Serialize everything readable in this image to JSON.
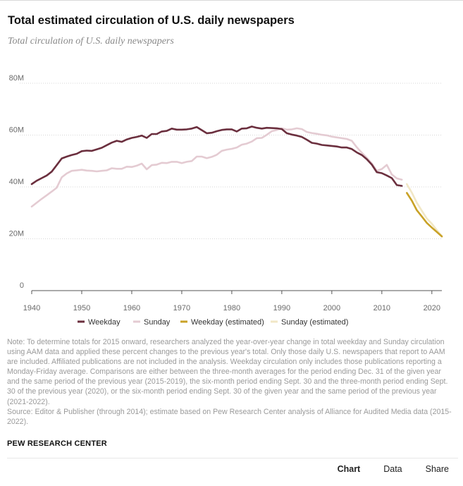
{
  "title": "Total estimated circulation of U.S. daily newspapers",
  "subtitle": "Total circulation of U.S. daily newspapers",
  "note": "Note: To determine totals for 2015 onward, researchers analyzed the year-over-year change in total weekday and Sunday circulation using AAM data and applied these percent changes to the previous year's total. Only those daily U.S. newspapers that report to AAM are included. Affiliated publications are not included in the analysis. Weekday circulation only includes those publications reporting a Monday-Friday average. Comparisons are either between the three-month averages for the period ending Dec. 31 of the given year and the same period of the previous year (2015-2019), the six-month period ending Sept. 30 and the three-month period ending Sept. 30 of the previous year (2020), or the six-month period ending Sept. 30 of the given year and the same period of the previous year (2021-2022).",
  "source": "Source: Editor & Publisher (through 2014); estimate based on Pew Research Center analysis of Alliance for Audited Media data (2015-2022).",
  "brand": "PEW RESEARCH CENTER",
  "tabs": {
    "chart": "Chart",
    "data": "Data",
    "share": "Share"
  },
  "colors": {
    "weekday": "#6b2f3e",
    "sunday": "#e4cbd2",
    "weekday_est": "#c9a227",
    "sunday_est": "#f1e7c6",
    "grid": "#d6d6d6",
    "axis": "#555555",
    "tick": "#6a6a6a"
  },
  "chart_data": {
    "type": "line",
    "x_ticks": [
      1940,
      1950,
      1960,
      1970,
      1980,
      1990,
      2000,
      2010,
      2020
    ],
    "y_ticks": [
      0,
      20,
      40,
      60,
      80
    ],
    "y_tick_labels": [
      "0",
      "20M",
      "40M",
      "60M",
      "80M"
    ],
    "xlim": [
      1940,
      2022
    ],
    "ylim": [
      0,
      80
    ],
    "grid": true,
    "legend_placement": "bottom",
    "series": [
      {
        "name": "Weekday",
        "x": [
          1940,
          1941,
          1942,
          1943,
          1944,
          1945,
          1946,
          1947,
          1948,
          1949,
          1950,
          1951,
          1952,
          1953,
          1954,
          1955,
          1956,
          1957,
          1958,
          1959,
          1960,
          1961,
          1962,
          1963,
          1964,
          1965,
          1966,
          1967,
          1968,
          1969,
          1970,
          1971,
          1972,
          1973,
          1974,
          1975,
          1976,
          1977,
          1978,
          1979,
          1980,
          1981,
          1982,
          1983,
          1984,
          1985,
          1986,
          1987,
          1988,
          1989,
          1990,
          1991,
          1992,
          1993,
          1994,
          1995,
          1996,
          1997,
          1998,
          1999,
          2000,
          2001,
          2002,
          2003,
          2004,
          2005,
          2006,
          2007,
          2008,
          2009,
          2010,
          2011,
          2012,
          2013,
          2014
        ],
        "values": [
          41.1,
          42.4,
          43.4,
          44.4,
          45.9,
          48.4,
          51.0,
          51.7,
          52.3,
          52.8,
          53.8,
          54.0,
          53.9,
          54.5,
          55.1,
          56.1,
          57.1,
          57.8,
          57.4,
          58.3,
          58.9,
          59.3,
          59.8,
          58.9,
          60.4,
          60.4,
          61.4,
          61.6,
          62.5,
          62.1,
          62.1,
          62.2,
          62.5,
          63.1,
          61.9,
          60.7,
          60.9,
          61.5,
          62.0,
          62.2,
          62.2,
          61.4,
          62.5,
          62.6,
          63.3,
          62.8,
          62.5,
          62.8,
          62.7,
          62.6,
          62.3,
          60.7,
          60.2,
          59.8,
          59.3,
          58.2,
          57.0,
          56.7,
          56.2,
          56.0,
          55.8,
          55.6,
          55.2,
          55.2,
          54.6,
          53.3,
          52.3,
          50.7,
          48.6,
          45.7,
          45.3,
          44.4,
          43.4,
          40.7,
          40.4
        ]
      },
      {
        "name": "Sunday",
        "x": [
          1940,
          1941,
          1942,
          1943,
          1944,
          1945,
          1946,
          1947,
          1948,
          1949,
          1950,
          1951,
          1952,
          1953,
          1954,
          1955,
          1956,
          1957,
          1958,
          1959,
          1960,
          1961,
          1962,
          1963,
          1964,
          1965,
          1966,
          1967,
          1968,
          1969,
          1970,
          1971,
          1972,
          1973,
          1974,
          1975,
          1976,
          1977,
          1978,
          1979,
          1980,
          1981,
          1982,
          1983,
          1984,
          1985,
          1986,
          1987,
          1988,
          1989,
          1990,
          1991,
          1992,
          1993,
          1994,
          1995,
          1996,
          1997,
          1998,
          1999,
          2000,
          2001,
          2002,
          2003,
          2004,
          2005,
          2006,
          2007,
          2008,
          2009,
          2010,
          2011,
          2012,
          2013,
          2014
        ],
        "values": [
          32.4,
          33.9,
          35.4,
          36.8,
          38.2,
          39.7,
          43.7,
          45.2,
          46.2,
          46.4,
          46.6,
          46.3,
          46.2,
          46.0,
          46.2,
          46.4,
          47.2,
          47.0,
          47.0,
          47.8,
          47.7,
          48.2,
          49.0,
          46.8,
          48.4,
          48.6,
          49.3,
          49.2,
          49.7,
          49.7,
          49.2,
          49.7,
          50.0,
          51.7,
          51.7,
          51.1,
          51.6,
          52.4,
          53.9,
          54.4,
          54.7,
          55.2,
          56.3,
          56.7,
          57.5,
          58.8,
          58.9,
          60.1,
          61.5,
          62.0,
          62.6,
          62.1,
          62.2,
          62.6,
          62.3,
          61.2,
          60.8,
          60.5,
          60.1,
          59.9,
          59.4,
          59.1,
          58.8,
          58.5,
          57.8,
          55.3,
          53.2,
          51.2,
          49.1,
          46.2,
          46.9,
          48.5,
          44.8,
          43.3,
          42.8
        ]
      },
      {
        "name": "Weekday (estimated)",
        "x": [
          2015,
          2016,
          2017,
          2018,
          2019,
          2020,
          2021,
          2022
        ],
        "values": [
          37.7,
          34.7,
          31.0,
          28.6,
          26.1,
          24.3,
          22.6,
          20.9
        ]
      },
      {
        "name": "Sunday (estimated)",
        "x": [
          2015,
          2016,
          2017,
          2018,
          2019,
          2020,
          2021,
          2022
        ],
        "values": [
          41.1,
          37.8,
          33.9,
          30.8,
          27.8,
          25.8,
          23.3,
          21.0
        ]
      }
    ]
  }
}
